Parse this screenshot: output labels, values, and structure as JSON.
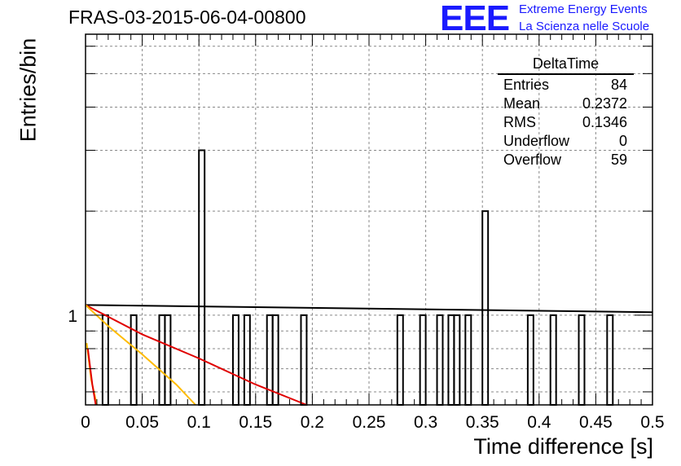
{
  "header": {
    "run_title": "FRAS-03-2015-06-04-00800",
    "logo_text": "EEE",
    "logo_line1": "Extreme Energy Events",
    "logo_line2": "La Scienza nelle Scuole"
  },
  "stats_box": {
    "title": "DeltaTime",
    "rows": [
      {
        "label": "Entries",
        "value": "84"
      },
      {
        "label": "Mean",
        "value": "0.2372"
      },
      {
        "label": "RMS",
        "value": "0.1346"
      },
      {
        "label": "Underflow",
        "value": "0"
      },
      {
        "label": "Overflow",
        "value": "59"
      }
    ]
  },
  "chart_data": {
    "type": "bar",
    "xlabel": "Time difference [s]",
    "ylabel": "Entries/bin",
    "xlim": [
      0,
      0.5
    ],
    "ylim_log": [
      0.55,
      6.5
    ],
    "log_y": true,
    "grid": true,
    "x_ticks": [
      "0",
      "0.05",
      "0.1",
      "0.15",
      "0.2",
      "0.25",
      "0.3",
      "0.35",
      "0.4",
      "0.45",
      "0.5"
    ],
    "y_ticks": [
      "1"
    ],
    "bin_width": 0.005,
    "bins": [
      {
        "x": 0.015,
        "value": 1
      },
      {
        "x": 0.04,
        "value": 1
      },
      {
        "x": 0.065,
        "value": 1
      },
      {
        "x": 0.07,
        "value": 1
      },
      {
        "x": 0.1,
        "value": 3
      },
      {
        "x": 0.13,
        "value": 1
      },
      {
        "x": 0.14,
        "value": 1
      },
      {
        "x": 0.16,
        "value": 1
      },
      {
        "x": 0.165,
        "value": 1
      },
      {
        "x": 0.19,
        "value": 1
      },
      {
        "x": 0.275,
        "value": 1
      },
      {
        "x": 0.295,
        "value": 1
      },
      {
        "x": 0.31,
        "value": 1
      },
      {
        "x": 0.32,
        "value": 1
      },
      {
        "x": 0.325,
        "value": 1
      },
      {
        "x": 0.335,
        "value": 1
      },
      {
        "x": 0.35,
        "value": 2
      },
      {
        "x": 0.39,
        "value": 1
      },
      {
        "x": 0.41,
        "value": 1
      },
      {
        "x": 0.435,
        "value": 1
      },
      {
        "x": 0.46,
        "value": 1
      }
    ],
    "fit_curves": [
      {
        "color": "#000000",
        "points": [
          [
            0,
            1.07
          ],
          [
            0.5,
            1.02
          ]
        ]
      },
      {
        "color": "#e00000",
        "points": [
          [
            0,
            1.07
          ],
          [
            0.05,
            0.88
          ],
          [
            0.1,
            0.75
          ],
          [
            0.15,
            0.63
          ],
          [
            0.195,
            0.55
          ]
        ]
      },
      {
        "color": "#ffbb00",
        "points": [
          [
            0,
            1.07
          ],
          [
            0.02,
            0.93
          ],
          [
            0.05,
            0.77
          ],
          [
            0.08,
            0.63
          ],
          [
            0.097,
            0.55
          ]
        ]
      },
      {
        "color": "#ffbb00",
        "points": [
          [
            0.001,
            0.83
          ],
          [
            0.005,
            0.65
          ],
          [
            0.01,
            0.55
          ]
        ]
      },
      {
        "color": "#e00000",
        "points": [
          [
            0.002,
            0.8
          ],
          [
            0.006,
            0.63
          ],
          [
            0.009,
            0.55
          ]
        ]
      }
    ]
  }
}
